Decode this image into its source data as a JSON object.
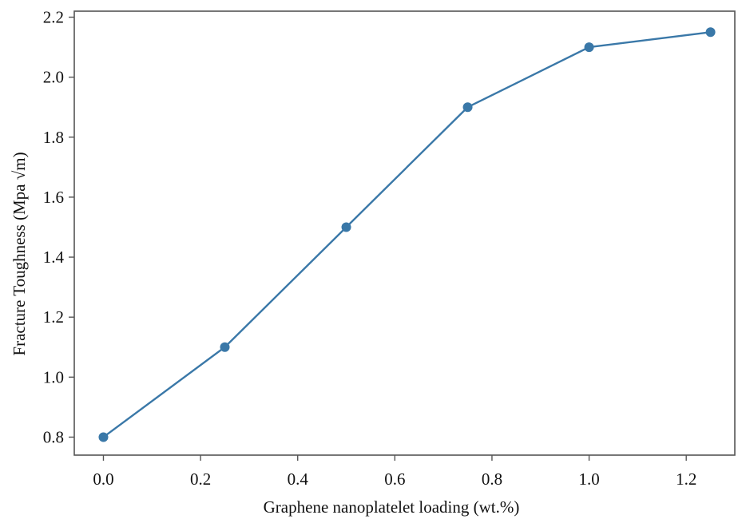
{
  "chart_data": {
    "type": "line",
    "title": "",
    "xlabel": "Graphene nanoplatelet loading (wt.%)",
    "ylabel": "Fracture Toughness (Mpa √m)",
    "xlim": [
      -0.06,
      1.3
    ],
    "ylim": [
      0.74,
      2.22
    ],
    "xticks": [
      "0.0",
      "0.2",
      "0.4",
      "0.6",
      "0.8",
      "1.0",
      "1.2"
    ],
    "yticks": [
      "0.8",
      "1.0",
      "1.2",
      "1.4",
      "1.6",
      "1.8",
      "2.0",
      "2.2"
    ],
    "grid": false,
    "legend": "none",
    "series": [
      {
        "color": "#3a78a8",
        "x": [
          0.0,
          0.25,
          0.5,
          0.75,
          1.0,
          1.25
        ],
        "y": [
          0.8,
          1.1,
          1.5,
          1.9,
          2.1,
          2.15
        ]
      }
    ]
  }
}
